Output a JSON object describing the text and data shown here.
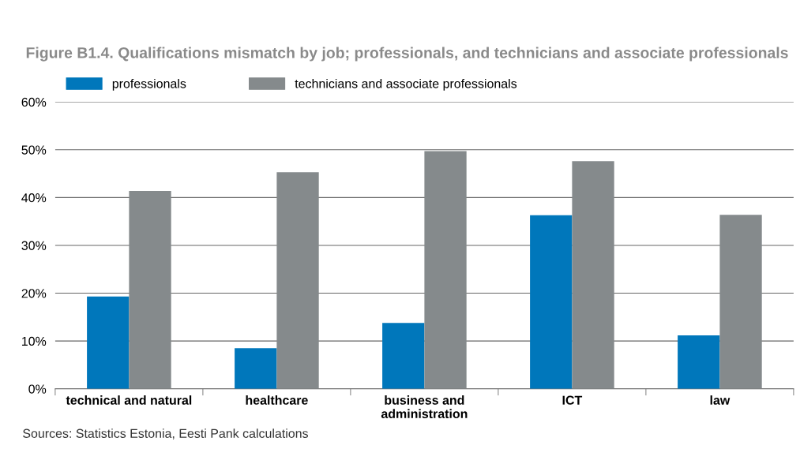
{
  "chart_data": {
    "type": "bar",
    "title": "Figure B1.4. Qualifications mismatch by job; professionals, and technicians and associate professionals",
    "categories": [
      "technical and natural",
      "healthcare",
      "business and\nadministration",
      "ICT",
      "law"
    ],
    "series": [
      {
        "name": "professionals",
        "color": "#0077bb",
        "values": [
          19.3,
          8.5,
          13.8,
          36.3,
          11.2
        ]
      },
      {
        "name": "technicians and associate professionals",
        "color": "#858a8c",
        "values": [
          41.4,
          45.3,
          49.7,
          47.6,
          36.4
        ]
      }
    ],
    "ylim": [
      0,
      60
    ],
    "yticks": [
      {
        "value": 0,
        "label": "0%"
      },
      {
        "value": 10,
        "label": "10%"
      },
      {
        "value": 20,
        "label": "20%"
      },
      {
        "value": 30,
        "label": "30%"
      },
      {
        "value": 40,
        "label": "40%"
      },
      {
        "value": 50,
        "label": "50%"
      },
      {
        "value": 60,
        "label": "60%"
      }
    ],
    "grid": "y",
    "legend": "top left",
    "annotations": [
      "Sources: Statistics Estonia, Eesti Pank calculations"
    ]
  }
}
